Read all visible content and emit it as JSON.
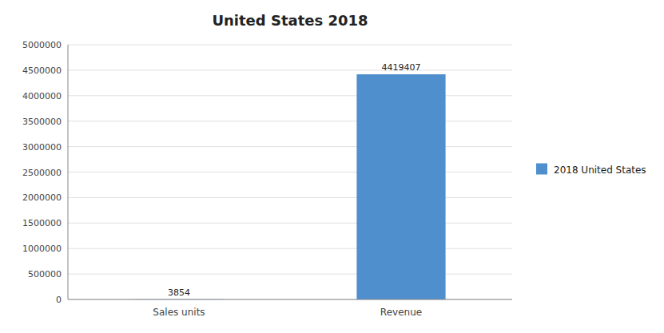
{
  "chart_data": {
    "type": "bar",
    "title": "United States 2018",
    "categories": [
      "Sales units",
      "Revenue"
    ],
    "series": [
      {
        "name": "2018 United States",
        "color": "#4f8fce",
        "values": [
          3854,
          4419407
        ]
      }
    ],
    "ylim": [
      0,
      5000000
    ],
    "yticks": [
      0,
      500000,
      1000000,
      1500000,
      2000000,
      2500000,
      3000000,
      3500000,
      4000000,
      4500000,
      5000000
    ],
    "grid": true,
    "data_labels": true,
    "legend": "right"
  }
}
